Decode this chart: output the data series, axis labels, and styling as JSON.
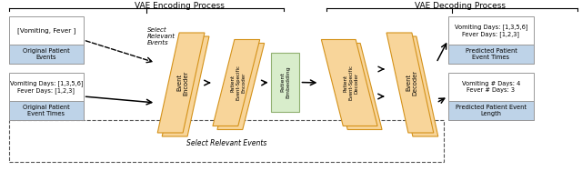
{
  "title_left": "VAE Encoding Process",
  "title_right": "VAE Decoding Process",
  "box1_text": "[Vomiting, Fever ]",
  "box1_label": "Original Patient\nEvents",
  "box2_text": "Vomiting Days: [1,3,5,6]\nFever Days: [1,2,3]",
  "box2_label": "Original Patient\nEvent Times",
  "enc_label": "Event\nEncoder",
  "pat_enc_label": "Patient\nEvent-Specific\nEncoder",
  "embed_label": "Patient\nEmbedding",
  "pat_dec_label": "Patient\nEvent-Specific\nDecoder",
  "dec_label": "Event\nDecoder",
  "box3_text": "Vomiting Days: [1,3,5,6]\nFever Days: [1,2,3]",
  "box3_label": "Predicted Patient\nEvent Times",
  "box4_text": "Vomiting # Days: 4\nFever # Days: 3",
  "box4_label": "Predicted Patient Event\nLength",
  "select_events_top": "Select\nRelevant\nEvents",
  "select_events_bottom": "Select Relevant Events",
  "bg": "#ffffff",
  "box_edge": "#999999",
  "box_fill": "#ffffff",
  "box_label_fill": "#bed3e8",
  "trapezoid_fill": "#f8d59a",
  "trapezoid_edge": "#d4921a",
  "embed_fill": "#d8edcb",
  "embed_edge": "#90b070",
  "arrow_color": "#000000",
  "dashed_color": "#555555"
}
